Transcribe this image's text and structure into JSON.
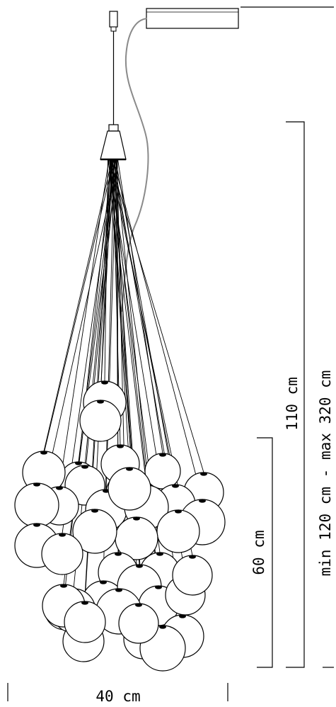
{
  "dimensions": {
    "width_label": "40 cm",
    "cluster_height_label": "60 cm",
    "body_height_label": "110 cm",
    "total_height_label": "min 120 cm - max 320 cm"
  },
  "colors": {
    "line": "#000000",
    "power_cord": "#8a8a8a",
    "globe_fill": "#ffffff",
    "background": "#ffffff"
  }
}
